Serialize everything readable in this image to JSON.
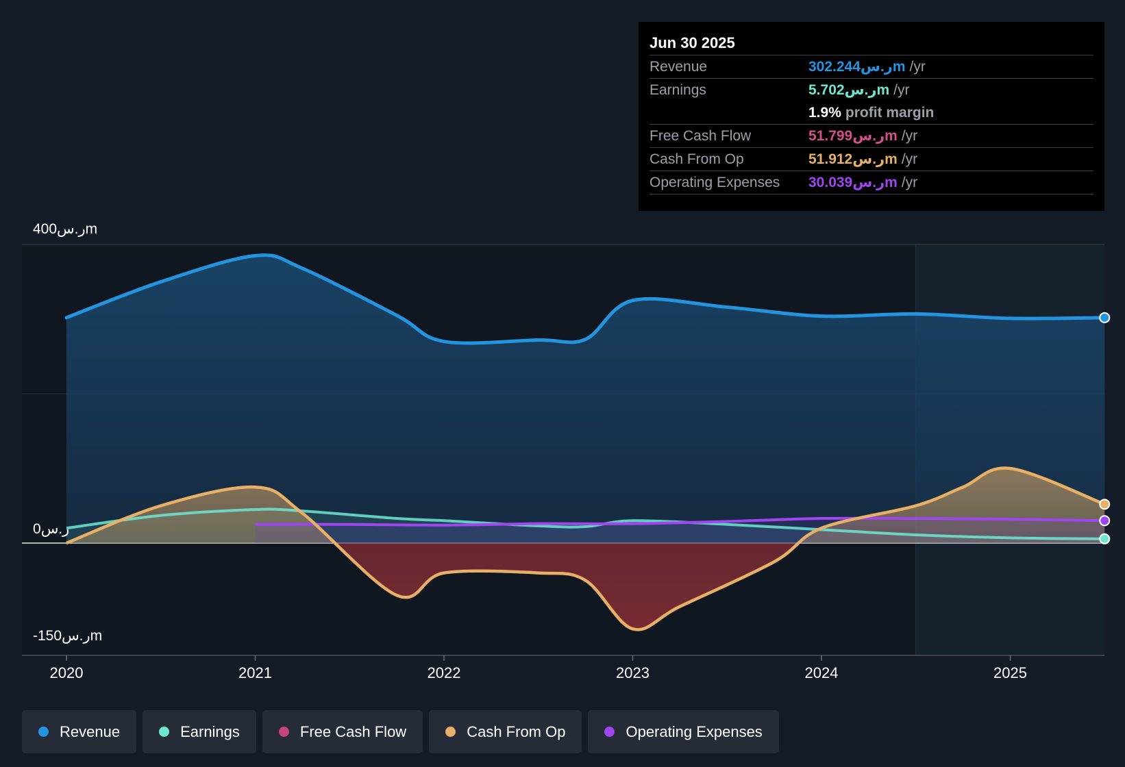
{
  "tooltip": {
    "date": "Jun 30 2025",
    "rows": [
      {
        "label": "Revenue",
        "value": "302.244ر.سm",
        "unit": "/yr",
        "color": "#2394df"
      },
      {
        "label": "Earnings",
        "value": "5.702ر.سm",
        "unit": "/yr",
        "color": "#6ee7d2"
      },
      {
        "label": "",
        "value": "1.9%",
        "unit": "profit margin",
        "color": "#ffffff"
      },
      {
        "label": "Free Cash Flow",
        "value": "51.799ر.سm",
        "unit": "/yr",
        "color": "#d2508a"
      },
      {
        "label": "Cash From Op",
        "value": "51.912ر.سm",
        "unit": "/yr",
        "color": "#e8b066"
      },
      {
        "label": "Operating Expenses",
        "value": "30.039ر.سm",
        "unit": "/yr",
        "color": "#a046f0"
      }
    ]
  },
  "legend": [
    {
      "label": "Revenue",
      "color": "#2394df"
    },
    {
      "label": "Earnings",
      "color": "#6ee7d2"
    },
    {
      "label": "Free Cash Flow",
      "color": "#c2437e"
    },
    {
      "label": "Cash From Op",
      "color": "#e8b066"
    },
    {
      "label": "Operating Expenses",
      "color": "#a046f0"
    }
  ],
  "chart_data": {
    "type": "area",
    "title": "",
    "xlabel": "",
    "ylabel": "",
    "ylim": [
      -150,
      400
    ],
    "y_axis_labels": [
      {
        "value": 400,
        "label": "400ر.سm"
      },
      {
        "value": 0,
        "label": "0ر.س"
      },
      {
        "value": -150,
        "label": "-150ر.سm"
      }
    ],
    "x_ticks": [
      2020,
      2021,
      2022,
      2023,
      2024,
      2025
    ],
    "x_tick_labels": [
      "2020",
      "2021",
      "2022",
      "2023",
      "2024",
      "2025"
    ],
    "xlim": [
      2019.77,
      2025.5
    ],
    "forecast_start": 2024.5,
    "series": [
      {
        "name": "Revenue",
        "color": "#2394df",
        "x": [
          2020.0,
          2020.5,
          2021.0,
          2021.25,
          2021.75,
          2022.0,
          2022.5,
          2022.75,
          2023.0,
          2023.5,
          2024.0,
          2024.5,
          2025.0,
          2025.5
        ],
        "values": [
          302,
          350,
          385,
          368,
          305,
          270,
          272,
          273,
          325,
          316,
          304,
          307,
          301,
          302
        ]
      },
      {
        "name": "Earnings",
        "color": "#6ee7d2",
        "x": [
          2020.0,
          2020.5,
          2021.0,
          2021.25,
          2021.75,
          2022.0,
          2022.5,
          2022.75,
          2023.0,
          2023.5,
          2024.0,
          2024.5,
          2025.0,
          2025.5
        ],
        "values": [
          20,
          37,
          45,
          43,
          33,
          30,
          23,
          22,
          30,
          25,
          18,
          11,
          7,
          5.7
        ]
      },
      {
        "name": "Free Cash Flow",
        "color": "#c2437e",
        "x": [
          2020.0,
          2020.5,
          2021.0,
          2021.25,
          2021.75,
          2022.0,
          2022.5,
          2022.75,
          2023.0,
          2023.25,
          2023.75,
          2024.0,
          2024.5,
          2024.75,
          2025.0,
          2025.5
        ],
        "values": [
          0,
          50,
          75,
          40,
          -70,
          -40,
          -40,
          -50,
          -115,
          -85,
          -25,
          20,
          50,
          75,
          100,
          52
        ]
      },
      {
        "name": "Cash From Op",
        "color": "#e8b066",
        "x": [
          2020.0,
          2020.5,
          2021.0,
          2021.25,
          2021.75,
          2022.0,
          2022.5,
          2022.75,
          2023.0,
          2023.25,
          2023.75,
          2024.0,
          2024.5,
          2024.75,
          2025.0,
          2025.5
        ],
        "values": [
          0,
          50,
          75,
          40,
          -70,
          -40,
          -40,
          -50,
          -115,
          -85,
          -25,
          20,
          50,
          75,
          100,
          52
        ]
      },
      {
        "name": "Operating Expenses",
        "color": "#a046f0",
        "x": [
          2021.0,
          2021.5,
          2022.0,
          2022.5,
          2023.0,
          2023.5,
          2024.0,
          2024.5,
          2025.0,
          2025.5
        ],
        "values": [
          25,
          25,
          24,
          26,
          26,
          29,
          33,
          33,
          32,
          30
        ]
      }
    ]
  }
}
